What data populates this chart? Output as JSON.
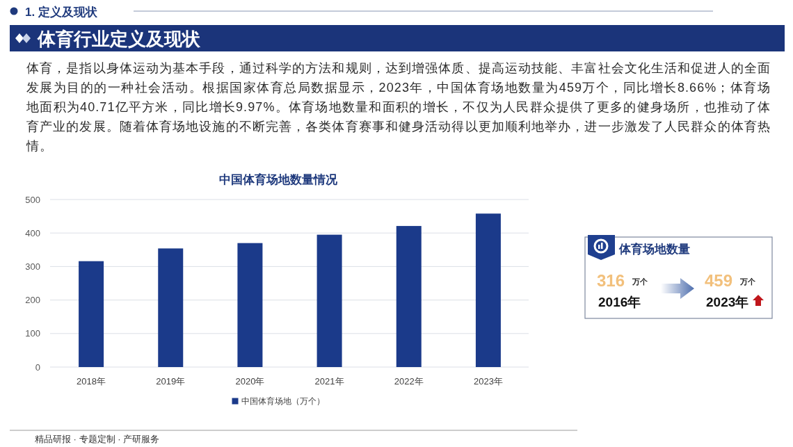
{
  "chart_data": [
    {
      "type": "other",
      "title": "体育行业定义及现状",
      "subtitle": "1. 定义及现状",
      "annotations": [
        "体育，是指以身体运动为基本手段，通过科学的方法和规则，达到增强体质、提高运动技能、丰富社会文化生活和促进人的全面发展为目的的一种社会活动。根据国家体育总局数据显示，2023年，中国体育场地数量为459万个，同比增长8.66%；体育场地面积为40.71亿平方米，同比增长9.97%。体育场地数量和面积的增长，不仅为人民群众提供了更多的健身场所，也推动了体育产业的发展。随着体育场地设施的不断完善，各类体育赛事和健身活动得以更加顺利地举办，进一步激发了人民群众的体育热情。",
        "精品研报 · 专题定制 · 产研服务"
      ]
    },
    {
      "type": "bar",
      "title": "中国体育场地数量情况",
      "categories": [
        "2018年",
        "2019年",
        "2020年",
        "2021年",
        "2022年",
        "2023年"
      ],
      "series": [
        {
          "name": "中国体育场地（万个）",
          "color": "#1b3a8a",
          "values": [
            316,
            354,
            370,
            395,
            421,
            458
          ]
        }
      ],
      "ylim": [
        0,
        500
      ],
      "yticks": [
        0,
        100,
        200,
        300,
        400,
        500
      ],
      "grid": "y",
      "legend": "bottom"
    },
    {
      "type": "other",
      "title": "体育场地数量",
      "annotations": [
        "316",
        "万个",
        "2016年",
        "459",
        "万个",
        "2023年"
      ]
    }
  ]
}
